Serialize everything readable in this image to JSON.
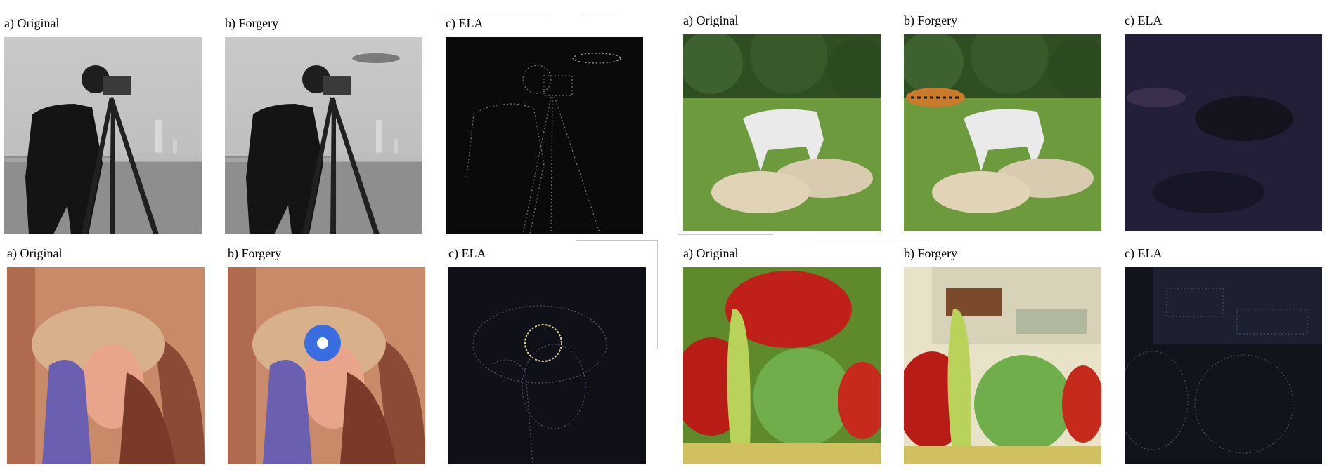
{
  "figure": {
    "panels": [
      {
        "id": "p1",
        "caption": "a) Original",
        "subject": "cameraman grayscale photo"
      },
      {
        "id": "p2",
        "caption": "b) Forgery",
        "subject": "cameraman with inserted airship"
      },
      {
        "id": "p3",
        "caption": "c) ELA",
        "subject": "error level analysis of cameraman forgery"
      },
      {
        "id": "p4",
        "caption": "a) Original",
        "subject": "white horse and sheep on grass"
      },
      {
        "id": "p5",
        "caption": "b) Forgery",
        "subject": "horse and sheep with inserted tiger"
      },
      {
        "id": "p6",
        "caption": "c) ELA",
        "subject": "error level analysis of horse forgery"
      },
      {
        "id": "p7",
        "caption": "a) Original",
        "subject": "portrait with hat"
      },
      {
        "id": "p8",
        "caption": "b) Forgery",
        "subject": "portrait with inserted blue flower"
      },
      {
        "id": "p9",
        "caption": "c) ELA",
        "subject": "error level analysis of portrait forgery"
      },
      {
        "id": "p10",
        "caption": "a) Original",
        "subject": "red and green peppers"
      },
      {
        "id": "p11",
        "caption": "b) Forgery",
        "subject": "peppers with inserted kitchen shelf"
      },
      {
        "id": "p12",
        "caption": "c) ELA",
        "subject": "error level analysis of peppers forgery"
      }
    ]
  },
  "colors": {
    "caption_text": "#000000",
    "ela_background": "#0a0a0a"
  }
}
